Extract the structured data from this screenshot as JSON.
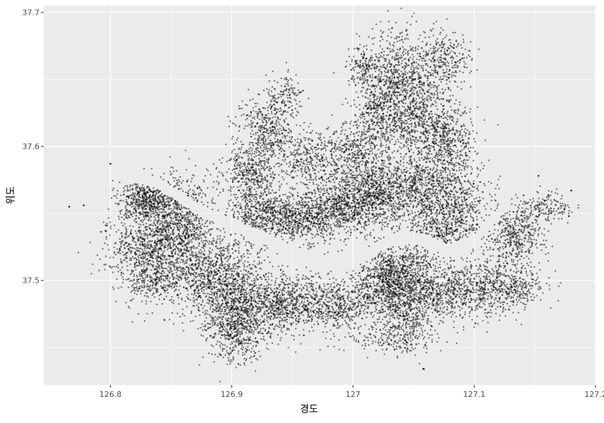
{
  "chart_data": {
    "type": "scatter",
    "title": "",
    "xlabel": "경도",
    "ylabel": "위도",
    "xlim": [
      126.745,
      127.2
    ],
    "ylim": [
      37.422,
      37.705
    ],
    "x_ticks": [
      126.8,
      126.9,
      127.0,
      127.1,
      127.2
    ],
    "x_tick_labels": [
      "126.8",
      "126.9",
      "127",
      "127.1",
      "127.2"
    ],
    "y_ticks": [
      37.5,
      37.6,
      37.7
    ],
    "y_tick_labels": [
      "37.5",
      "37.6",
      "37.7"
    ],
    "grid": true,
    "legend": "none",
    "point_color": "#000000",
    "point_alpha": 0.5,
    "panel_background": "#ebebeb",
    "grid_color": "#ffffff",
    "point_clusters": [
      {
        "x": 126.83,
        "y": 37.56,
        "sx": 0.012,
        "sy": 0.008,
        "n": 500
      },
      {
        "x": 126.855,
        "y": 37.545,
        "sx": 0.016,
        "sy": 0.016,
        "n": 900
      },
      {
        "x": 126.83,
        "y": 37.525,
        "sx": 0.018,
        "sy": 0.012,
        "n": 600
      },
      {
        "x": 126.835,
        "y": 37.5,
        "sx": 0.014,
        "sy": 0.01,
        "n": 350
      },
      {
        "x": 126.875,
        "y": 37.505,
        "sx": 0.014,
        "sy": 0.016,
        "n": 500
      },
      {
        "x": 126.9,
        "y": 37.49,
        "sx": 0.014,
        "sy": 0.02,
        "n": 900
      },
      {
        "x": 126.905,
        "y": 37.46,
        "sx": 0.01,
        "sy": 0.01,
        "n": 300
      },
      {
        "x": 126.93,
        "y": 37.48,
        "sx": 0.016,
        "sy": 0.012,
        "n": 550
      },
      {
        "x": 126.96,
        "y": 37.485,
        "sx": 0.016,
        "sy": 0.01,
        "n": 450
      },
      {
        "x": 126.99,
        "y": 37.48,
        "sx": 0.014,
        "sy": 0.01,
        "n": 350
      },
      {
        "x": 127.02,
        "y": 37.495,
        "sx": 0.012,
        "sy": 0.01,
        "n": 300
      },
      {
        "x": 127.04,
        "y": 37.505,
        "sx": 0.016,
        "sy": 0.012,
        "n": 900
      },
      {
        "x": 127.045,
        "y": 37.475,
        "sx": 0.014,
        "sy": 0.012,
        "n": 450
      },
      {
        "x": 127.035,
        "y": 37.455,
        "sx": 0.016,
        "sy": 0.006,
        "n": 150
      },
      {
        "x": 127.075,
        "y": 37.49,
        "sx": 0.014,
        "sy": 0.01,
        "n": 350
      },
      {
        "x": 127.105,
        "y": 37.495,
        "sx": 0.016,
        "sy": 0.012,
        "n": 450
      },
      {
        "x": 127.135,
        "y": 37.495,
        "sx": 0.012,
        "sy": 0.008,
        "n": 250
      },
      {
        "x": 127.135,
        "y": 37.535,
        "sx": 0.012,
        "sy": 0.012,
        "n": 450
      },
      {
        "x": 127.16,
        "y": 37.555,
        "sx": 0.01,
        "sy": 0.006,
        "n": 150
      },
      {
        "x": 126.925,
        "y": 37.55,
        "sx": 0.014,
        "sy": 0.01,
        "n": 500
      },
      {
        "x": 126.955,
        "y": 37.545,
        "sx": 0.016,
        "sy": 0.01,
        "n": 550
      },
      {
        "x": 126.99,
        "y": 37.555,
        "sx": 0.018,
        "sy": 0.01,
        "n": 700
      },
      {
        "x": 127.02,
        "y": 37.565,
        "sx": 0.016,
        "sy": 0.012,
        "n": 700
      },
      {
        "x": 127.055,
        "y": 37.57,
        "sx": 0.016,
        "sy": 0.014,
        "n": 650
      },
      {
        "x": 127.085,
        "y": 37.555,
        "sx": 0.014,
        "sy": 0.014,
        "n": 500
      },
      {
        "x": 127.07,
        "y": 37.535,
        "sx": 0.014,
        "sy": 0.008,
        "n": 300
      },
      {
        "x": 126.915,
        "y": 37.58,
        "sx": 0.012,
        "sy": 0.01,
        "n": 350
      },
      {
        "x": 126.93,
        "y": 37.61,
        "sx": 0.012,
        "sy": 0.015,
        "n": 500
      },
      {
        "x": 126.965,
        "y": 37.59,
        "sx": 0.012,
        "sy": 0.012,
        "n": 300
      },
      {
        "x": 127.0,
        "y": 37.595,
        "sx": 0.014,
        "sy": 0.012,
        "n": 450
      },
      {
        "x": 127.025,
        "y": 37.625,
        "sx": 0.012,
        "sy": 0.014,
        "n": 500
      },
      {
        "x": 127.04,
        "y": 37.655,
        "sx": 0.016,
        "sy": 0.016,
        "n": 650
      },
      {
        "x": 127.06,
        "y": 37.62,
        "sx": 0.014,
        "sy": 0.016,
        "n": 550
      },
      {
        "x": 127.08,
        "y": 37.6,
        "sx": 0.012,
        "sy": 0.014,
        "n": 400
      },
      {
        "x": 127.075,
        "y": 37.665,
        "sx": 0.01,
        "sy": 0.01,
        "n": 250
      },
      {
        "x": 127.01,
        "y": 37.66,
        "sx": 0.008,
        "sy": 0.008,
        "n": 150
      },
      {
        "x": 126.945,
        "y": 37.64,
        "sx": 0.006,
        "sy": 0.008,
        "n": 100
      }
    ],
    "outlier_points": [
      {
        "x": 126.766,
        "y": 37.555
      },
      {
        "x": 126.778,
        "y": 37.556
      },
      {
        "x": 126.797,
        "y": 37.541
      },
      {
        "x": 126.796,
        "y": 37.537
      },
      {
        "x": 126.8,
        "y": 37.587
      },
      {
        "x": 127.058,
        "y": 37.434
      },
      {
        "x": 127.18,
        "y": 37.567
      },
      {
        "x": 127.178,
        "y": 37.548
      },
      {
        "x": 127.153,
        "y": 37.578
      }
    ]
  }
}
